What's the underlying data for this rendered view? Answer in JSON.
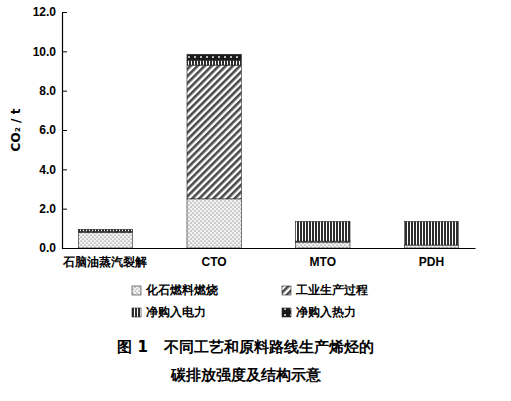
{
  "chart_data": {
    "type": "bar",
    "stacked": true,
    "title": "图 1   不同工艺和原料路线生产烯烃的\n碳排放强度及结构示意",
    "y_label": "CO₂ / t",
    "categories": [
      "石脑油蒸汽裂解",
      "CTO",
      "MTO",
      "PDH"
    ],
    "series": [
      {
        "name": "化石燃料燃烧",
        "color": "#f2f2f2",
        "values": [
          0.8,
          2.5,
          0.3,
          0.15
        ]
      },
      {
        "name": "工业生产过程",
        "color": "#4a4a4a",
        "values": [
          0.05,
          6.8,
          0.05,
          0.0
        ]
      },
      {
        "name": "净购入电力",
        "color": "#2e2e2e",
        "values": [
          0.1,
          0.25,
          1.0,
          1.2
        ]
      },
      {
        "name": "净购入热力",
        "color": "#1a1a1a",
        "values": [
          0.0,
          0.3,
          0.0,
          0.0
        ]
      }
    ],
    "ylim": [
      0,
      12
    ],
    "yticks": [
      {
        "value": 0,
        "label": "0.0"
      },
      {
        "value": 2,
        "label": "2.0"
      },
      {
        "value": 4,
        "label": "4.0"
      },
      {
        "value": 6,
        "label": "6.0"
      },
      {
        "value": 8,
        "label": "8.0"
      },
      {
        "value": 10,
        "label": "10.0"
      },
      {
        "value": 12,
        "label": "12.0"
      }
    ],
    "legend": "bottom",
    "grid": false
  }
}
